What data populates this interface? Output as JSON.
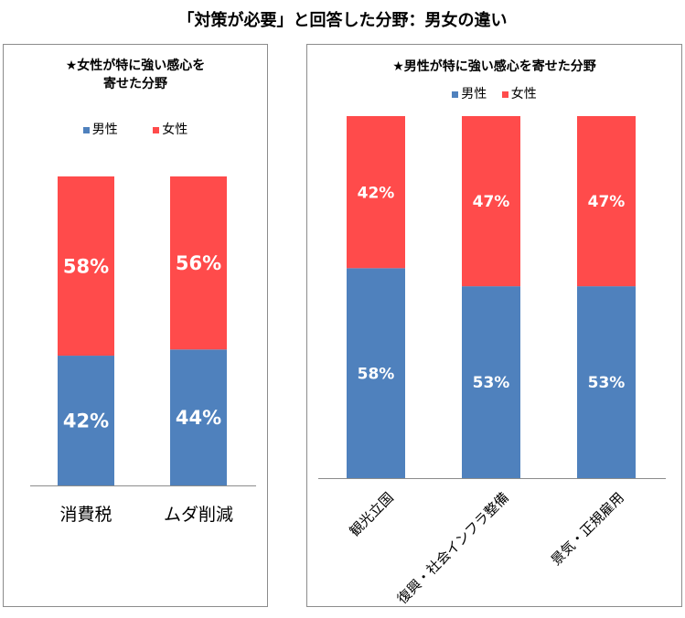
{
  "title": "「対策が必要」と回答した分野：男女の違い",
  "colors": {
    "male": "#4f81bd",
    "female": "#ff4b4b",
    "axis": "#8c8c8c"
  },
  "chart_data": [
    {
      "type": "bar",
      "stacked": true,
      "title_lines": [
        "★女性が特に強い感心を",
        "寄せた分野"
      ],
      "categories": [
        "消費税",
        "ムダ削減"
      ],
      "series": [
        {
          "name": "男性",
          "values": [
            42,
            44
          ],
          "labels": [
            "42%",
            "44%"
          ]
        },
        {
          "name": "女性",
          "values": [
            58,
            56
          ],
          "labels": [
            "58%",
            "56%"
          ]
        }
      ],
      "ylim": [
        0,
        100
      ],
      "legend": "top"
    },
    {
      "type": "bar",
      "stacked": true,
      "title_lines": [
        "★男性が特に強い感心を寄せた分野"
      ],
      "categories": [
        "観光立国",
        "復興・社会インフラ整備",
        "景気・正規雇用"
      ],
      "series": [
        {
          "name": "男性",
          "values": [
            58,
            53,
            53
          ],
          "labels": [
            "58%",
            "53%",
            "53%"
          ]
        },
        {
          "name": "女性",
          "values": [
            42,
            47,
            47
          ],
          "labels": [
            "42%",
            "47%",
            "47%"
          ]
        }
      ],
      "ylim": [
        0,
        100
      ],
      "legend": "top"
    }
  ]
}
